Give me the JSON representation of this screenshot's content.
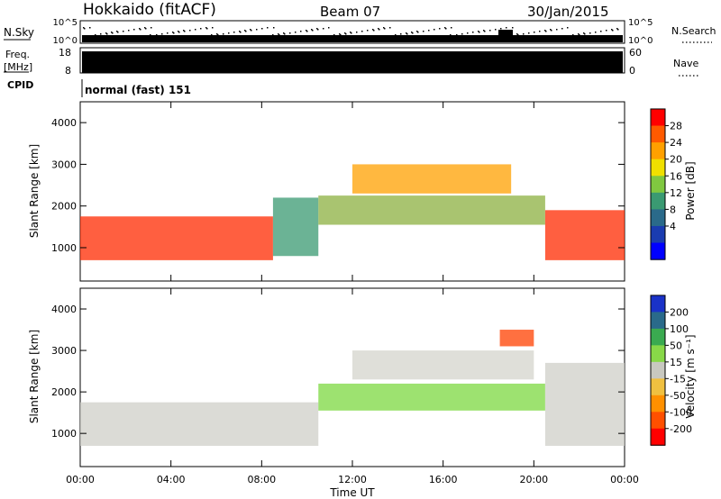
{
  "header": {
    "station": "Hokkaido (fitACF)",
    "beam": "Beam 07",
    "date": "30/Jan/2015"
  },
  "strip": {
    "nsky_label": "N.Sky",
    "nsky_ticks": [
      "10^5",
      "10^0"
    ],
    "nsearch_label": "N.Search",
    "freq_label": "Freq.",
    "freq_unit": "[MHz]",
    "freq_ticks": [
      "18",
      "8"
    ],
    "nave_ticks": [
      "60",
      "0"
    ],
    "nave_label": "Nave",
    "cpid_label": "CPID",
    "cpid_value": "normal (fast) 151"
  },
  "chart_data": [
    {
      "type": "heatmap",
      "name": "power",
      "ylabel": "Slant Range [km]",
      "ylim": [
        200,
        4500
      ],
      "yticks": [
        "1000",
        "2000",
        "3000",
        "4000"
      ],
      "colorbar_label": "Power [dB]",
      "colorbar_ticks": [
        "28",
        "24",
        "20",
        "16",
        "12",
        "8",
        "4"
      ],
      "colorbar_colors": [
        "#ff0000",
        "#ff5a00",
        "#ffa000",
        "#f0e000",
        "#80c840",
        "#3a9a72",
        "#2a6a8a",
        "#1a3cb0",
        "#0000ff"
      ],
      "regions": [
        {
          "t0": 0.0,
          "t1": 8.5,
          "r0": 700,
          "r1": 1750,
          "color": "#ff2a00"
        },
        {
          "t0": 8.5,
          "t1": 10.5,
          "r0": 800,
          "r1": 2200,
          "color": "#3a9a72"
        },
        {
          "t0": 10.5,
          "t1": 20.5,
          "r0": 1550,
          "r1": 2250,
          "color": "#8cb040"
        },
        {
          "t0": 12.0,
          "t1": 19.0,
          "r0": 2300,
          "r1": 3000,
          "color": "#ffa000"
        },
        {
          "t0": 20.5,
          "t1": 24.0,
          "r0": 700,
          "r1": 1900,
          "color": "#ff2a00"
        }
      ]
    },
    {
      "type": "heatmap",
      "name": "velocity",
      "xlabel": "Time UT",
      "xticks": [
        "00:00",
        "04:00",
        "08:00",
        "12:00",
        "16:00",
        "20:00",
        "00:00"
      ],
      "ylabel": "Slant Range [km]",
      "ylim": [
        200,
        4500
      ],
      "yticks": [
        "1000",
        "2000",
        "3000",
        "4000"
      ],
      "colorbar_label": "Velocity [m s⁻¹]",
      "colorbar_ticks": [
        "200",
        "100",
        "50",
        "15",
        "-15",
        "-50",
        "-100",
        "-200"
      ],
      "colorbar_colors": [
        "#1a32c8",
        "#2a6a8a",
        "#3aaa50",
        "#88d848",
        "#c8c8c0",
        "#f0c040",
        "#ff9000",
        "#ff5000",
        "#ff0000"
      ],
      "regions": [
        {
          "t0": 0.0,
          "t1": 10.5,
          "r0": 700,
          "r1": 1750,
          "color": "#cfcfc8"
        },
        {
          "t0": 10.5,
          "t1": 20.5,
          "r0": 1550,
          "r1": 2200,
          "color": "#7cd840"
        },
        {
          "t0": 12.0,
          "t1": 20.0,
          "r0": 2300,
          "r1": 3000,
          "color": "#d4d4cc"
        },
        {
          "t0": 20.5,
          "t1": 24.0,
          "r0": 700,
          "r1": 2700,
          "color": "#cfcfc8"
        },
        {
          "t0": 18.5,
          "t1": 20.0,
          "r0": 3100,
          "r1": 3500,
          "color": "#ff4000"
        }
      ]
    }
  ]
}
